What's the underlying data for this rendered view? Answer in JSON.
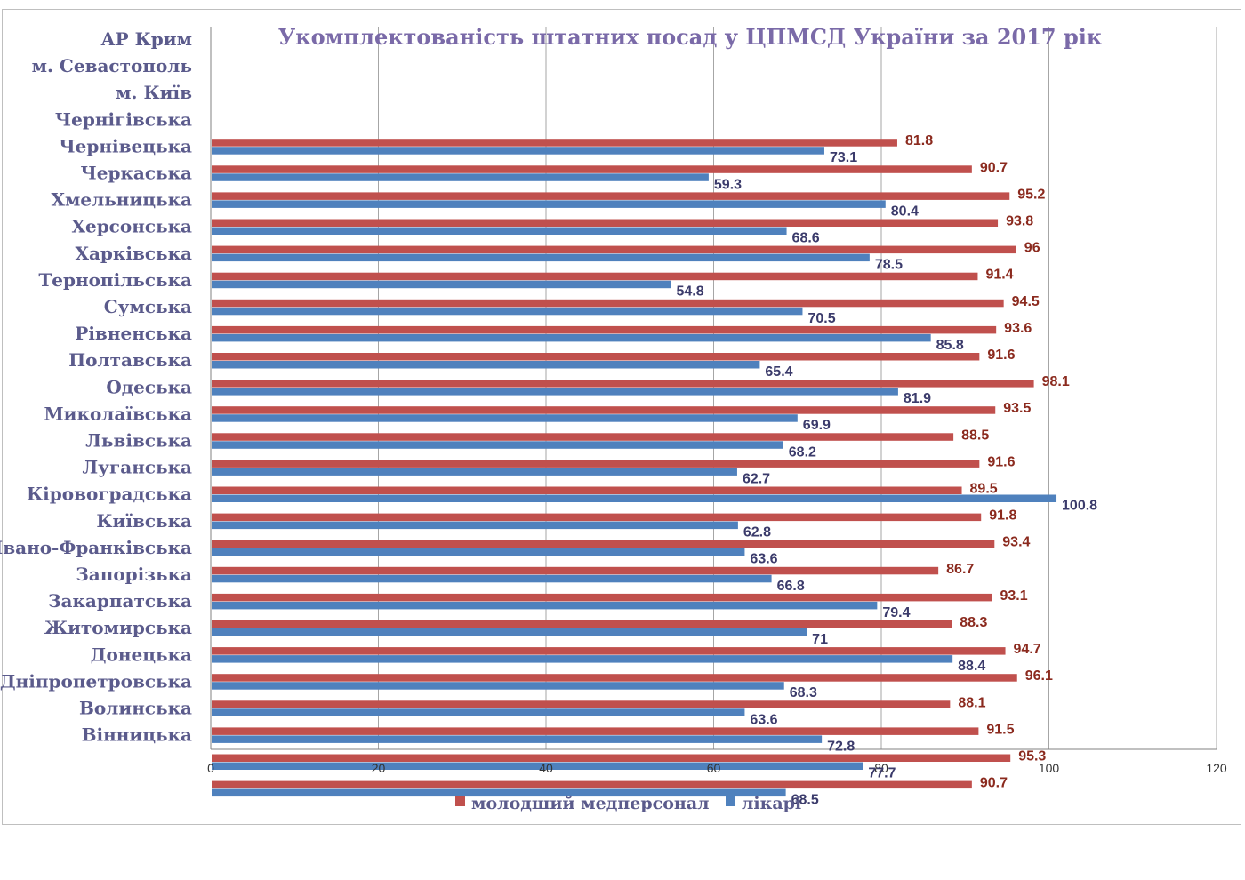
{
  "chart_data": {
    "type": "bar",
    "orientation": "horizontal",
    "title": "Укомплектованість штатних посад у ЦПМСД України за 2017 рік",
    "categories": [
      "АР Крим",
      "м. Севастополь",
      "м. Київ",
      "Чернігівська",
      "Чернівецька",
      "Черкаська",
      "Хмельницька",
      "Херсонська",
      "Харківська",
      "Тернопільська",
      "Сумська",
      "Рівненська",
      "Полтавська",
      "Одеська",
      "Миколаївська",
      "Львівська",
      "Луганська",
      "Кіровоградська",
      "Київська",
      "Івано-Франківська",
      "Запорізька",
      "Закарпатська",
      "Житомирська",
      "Донецька",
      "Дніпропетровська",
      "Волинська",
      "Вінницька"
    ],
    "series": [
      {
        "name": "молодший медперсонал",
        "color": "#c0504d",
        "values": [
          null,
          null,
          81.8,
          90.7,
          95.2,
          93.8,
          96,
          91.4,
          94.5,
          93.6,
          91.6,
          98.1,
          93.5,
          88.5,
          91.6,
          89.5,
          91.8,
          93.4,
          86.7,
          93.1,
          88.3,
          94.7,
          96.1,
          88.1,
          91.5,
          95.3,
          90.7
        ]
      },
      {
        "name": "лікарі",
        "color": "#4f81bd",
        "values": [
          null,
          null,
          73.1,
          59.3,
          80.4,
          68.6,
          78.5,
          54.8,
          70.5,
          85.8,
          65.4,
          81.9,
          69.9,
          68.2,
          62.7,
          100.8,
          62.8,
          63.6,
          66.8,
          79.4,
          71,
          88.4,
          68.3,
          63.6,
          72.8,
          77.7,
          68.5
        ]
      }
    ],
    "xlim": [
      0,
      120
    ],
    "xticks": [
      "0",
      "20",
      "40",
      "60",
      "80",
      "100",
      "120"
    ],
    "grid": "vertical",
    "legend_position": "bottom"
  }
}
